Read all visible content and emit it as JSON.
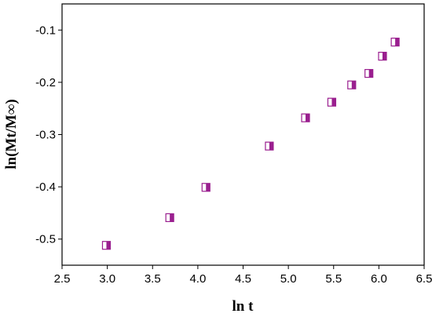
{
  "chart_data": {
    "type": "scatter",
    "xlabel": "ln t",
    "ylabel": "ln(Mt/M∞)",
    "xlim": [
      2.5,
      6.5
    ],
    "ylim": [
      -0.55,
      -0.05
    ],
    "xticks": [
      2.5,
      3.0,
      3.5,
      4.0,
      4.5,
      5.0,
      5.5,
      6.0,
      6.5
    ],
    "xtick_labels": [
      "2.5",
      "3.0",
      "3.5",
      "4.0",
      "4.5",
      "5.0",
      "5.5",
      "6.0",
      "6.5"
    ],
    "yticks": [
      -0.5,
      -0.4,
      -0.3,
      -0.2,
      -0.1
    ],
    "ytick_labels": [
      "-0.5",
      "-0.4",
      "-0.3",
      "-0.2",
      "-0.1"
    ],
    "grid": false,
    "marker": "half-filled square",
    "marker_color": "#9a1f8f",
    "series": [
      {
        "points": [
          {
            "x": 2.99,
            "y": -0.512
          },
          {
            "x": 3.69,
            "y": -0.459
          },
          {
            "x": 4.09,
            "y": -0.401
          },
          {
            "x": 4.79,
            "y": -0.322
          },
          {
            "x": 5.19,
            "y": -0.268
          },
          {
            "x": 5.48,
            "y": -0.238
          },
          {
            "x": 5.7,
            "y": -0.205
          },
          {
            "x": 5.89,
            "y": -0.183
          },
          {
            "x": 6.04,
            "y": -0.15
          },
          {
            "x": 6.18,
            "y": -0.123
          }
        ]
      }
    ]
  }
}
